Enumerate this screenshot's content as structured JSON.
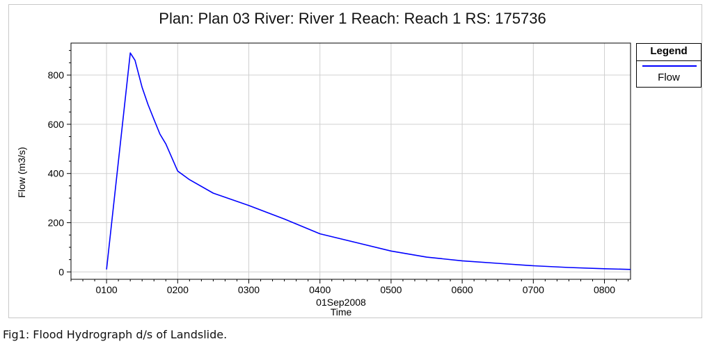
{
  "chart_data": {
    "type": "line",
    "title": "Plan: Plan 03    River: River 1    Reach: Reach 1    RS: 175736",
    "xlabel": "Time",
    "xlabel_date": "01Sep2008",
    "ylabel": "Flow (m3/s)",
    "xlim": [
      "0030",
      "0822"
    ],
    "ylim": [
      -30,
      930
    ],
    "grid": true,
    "legend_position": "right",
    "legend_title": "Legend",
    "x_ticks": [
      "0100",
      "0200",
      "0300",
      "0400",
      "0500",
      "0600",
      "0700",
      "0800"
    ],
    "y_ticks": [
      0,
      200,
      400,
      600,
      800
    ],
    "series": [
      {
        "name": "Flow",
        "color": "#0000ff",
        "x": [
          "0100",
          "0120",
          "0124",
          "0130",
          "0135",
          "0140",
          "0145",
          "0150",
          "0200",
          "0210",
          "0230",
          "0300",
          "0330",
          "0400",
          "0430",
          "0500",
          "0530",
          "0600",
          "0630",
          "0700",
          "0730",
          "0800",
          "0822"
        ],
        "values": [
          10,
          890,
          860,
          750,
          680,
          620,
          560,
          520,
          410,
          375,
          320,
          270,
          215,
          155,
          120,
          85,
          60,
          45,
          35,
          25,
          18,
          13,
          10
        ]
      }
    ]
  },
  "caption": "Fig1: Flood Hydrograph d/s of Landslide.",
  "legend": {
    "title": "Legend",
    "item": "Flow"
  }
}
